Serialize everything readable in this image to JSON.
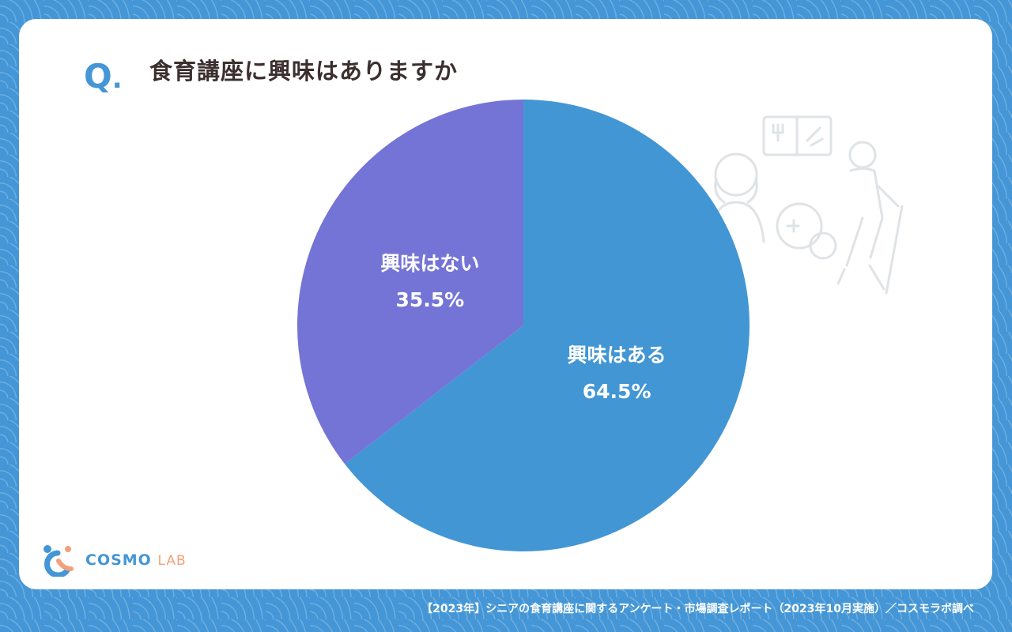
{
  "question": {
    "mark": "Q",
    "dot": ".",
    "title": "食育講座に興味はありますか"
  },
  "chart_data": {
    "type": "pie",
    "title": "食育講座に興味はありますか",
    "slices": [
      {
        "label": "興味はある",
        "value": 64.5,
        "display": "64.5%",
        "color": "#4296d4"
      },
      {
        "label": "興味はない",
        "value": 35.5,
        "display": "35.5%",
        "color": "#7474d6"
      }
    ]
  },
  "logo": {
    "brand": "COSMO",
    "suffix": "LAB"
  },
  "footer": {
    "source": "【2023年】シニアの食育講座に関するアンケート・市場調査レポート（2023年10月実施）／コスモラボ調べ"
  },
  "colors": {
    "accent": "#4496d6",
    "title_text": "#3b2f2f",
    "logo_orange": "#f2a07a"
  }
}
